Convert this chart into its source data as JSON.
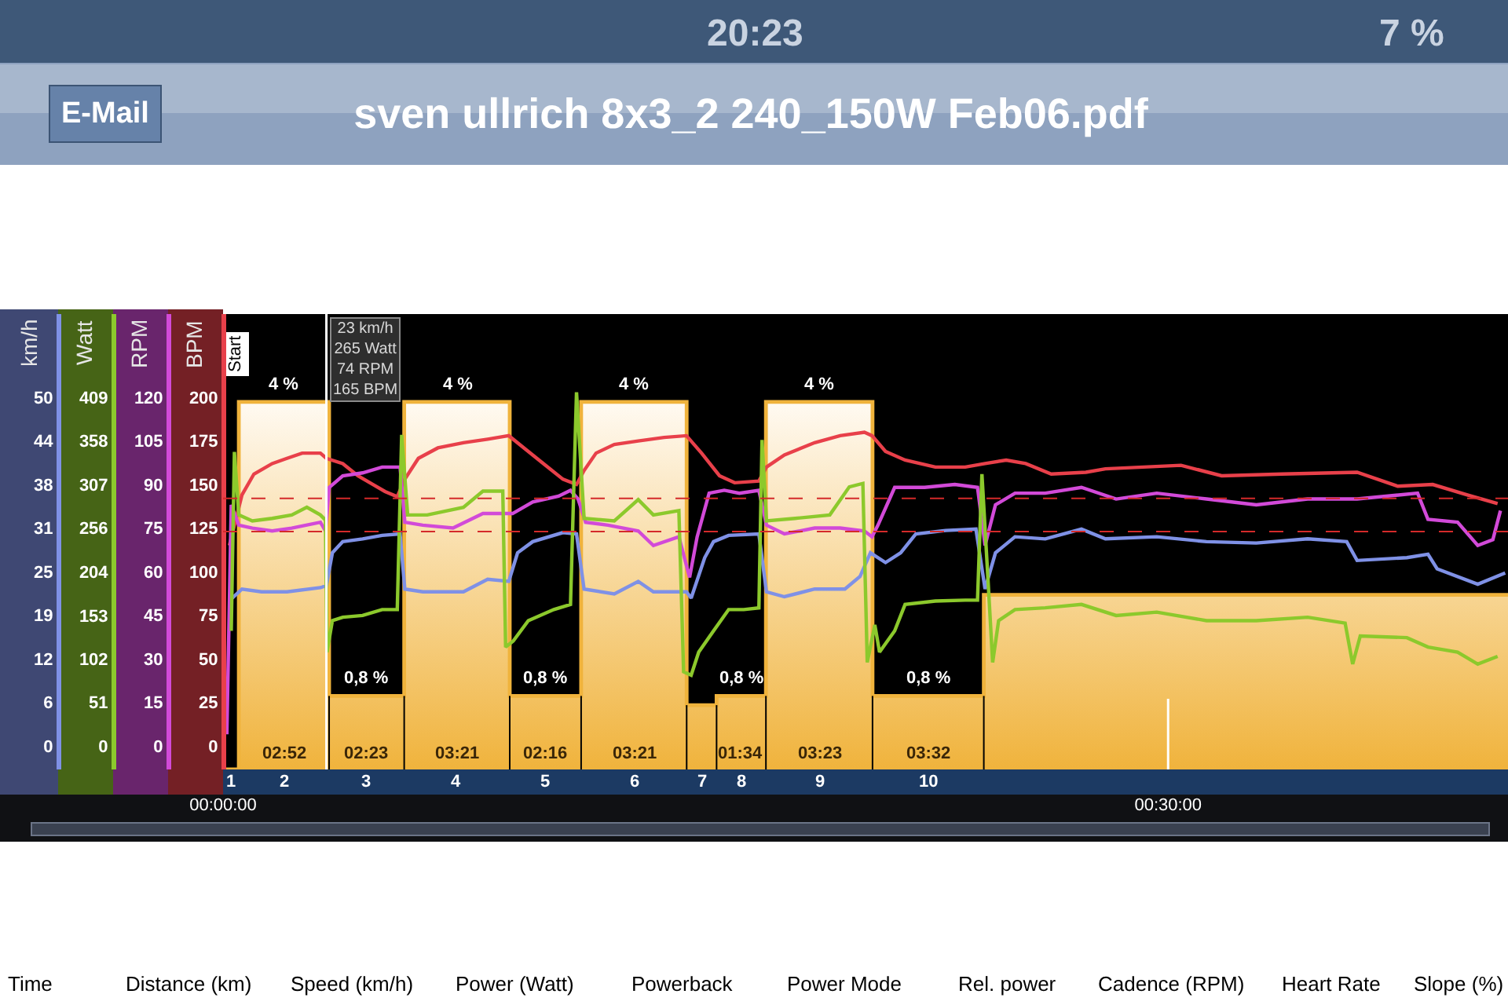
{
  "chart_data": [
    {
      "type": "line",
      "title": "sven ullrich 8x3_2 240_150W Feb06.pdf",
      "xlim": [
        0,
        40.79
      ],
      "xticks": [
        {
          "value": 0,
          "label": "00:00:00"
        },
        {
          "value": 30,
          "label": "00:30:00"
        }
      ],
      "y2label": "km/h",
      "y2lim": [
        -3.38,
        61.95
      ],
      "y2ticks": [
        0,
        {
          "value": 6.25,
          "label": "6"
        },
        {
          "value": 12.5,
          "label": "12"
        },
        {
          "value": 18.75,
          "label": "19"
        },
        25,
        {
          "value": 31.25,
          "label": "31"
        },
        {
          "value": 37.5,
          "label": "38"
        },
        {
          "value": 43.75,
          "label": "44"
        },
        50
      ],
      "series": [
        {
          "type": "area",
          "color": "#f0b33c",
          "x": [
            0,
            0.25,
            0.5,
            0.5,
            1.93,
            3.367,
            3.367,
            4.56,
            5.75,
            5.75,
            7.43,
            9.1,
            9.1,
            10.23,
            11.367,
            11.367,
            13.04,
            14.717,
            14.717,
            15.19,
            15.667,
            15.667,
            16.45,
            17.233,
            17.233,
            18.93,
            20.617,
            20.617,
            22.38,
            24.15,
            24.15,
            32.47,
            40.79
          ],
          "values": [
            0,
            0,
            0,
            4,
            4,
            4,
            0.8,
            0.8,
            0.8,
            4,
            4,
            4,
            0.8,
            0.8,
            0.8,
            4,
            4,
            4,
            0.7,
            0.7,
            0.7,
            0.8,
            0.8,
            0.8,
            4,
            4,
            4,
            0.8,
            0.8,
            0.8,
            1.9,
            1.9,
            1.9
          ],
          "value_labels": [
            null,
            null,
            null,
            null,
            "4 %",
            null,
            null,
            "0,8 %",
            null,
            null,
            "4 %",
            null,
            null,
            "0,8 %",
            null,
            null,
            "4 %",
            null,
            null,
            null,
            null,
            null,
            "0,8 %",
            null,
            null,
            "4 %",
            null,
            null,
            "0,8 %",
            null,
            null,
            null,
            null
          ]
        },
        {
          "color": "#7f91e6",
          "axis": "y2",
          "x": [
            0.22,
            0.6,
            1.22,
            2.03,
            3.09,
            3.28,
            3.47,
            3.8,
            4.43,
            5.05,
            5.62,
            5.77,
            6.34,
            7.63,
            8.4,
            9.07,
            9.35,
            9.83,
            10.79,
            11.22,
            11.46,
            12.42,
            13.18,
            13.66,
            14.71,
            14.86,
            15.29,
            15.57,
            16.05,
            17.01,
            17.25,
            17.82,
            18.78,
            19.74,
            20.22,
            20.55,
            21.03,
            21.51,
            21.99,
            22.94,
            23.9,
            24.19,
            24.52,
            25.14,
            26.1,
            27.25,
            28.01,
            29.64,
            31.22,
            32.8,
            34.43,
            35.67,
            36.0,
            37.58,
            38.25,
            38.54,
            39.83,
            40.7
          ],
          "values": [
            20.9,
            22.5,
            22.1,
            22.1,
            22.7,
            23,
            27.7,
            29.3,
            29.7,
            30.2,
            30.4,
            22.5,
            22.1,
            22.1,
            23.9,
            23.6,
            27.7,
            29.3,
            30.6,
            30.4,
            22.5,
            21.8,
            23.6,
            22.1,
            22.1,
            21.2,
            27,
            29.3,
            30.2,
            30.4,
            22.1,
            21.4,
            22.5,
            22.5,
            24.3,
            27.7,
            26.3,
            27.7,
            30.4,
            30.9,
            31.1,
            22.5,
            27.7,
            30,
            29.7,
            31.1,
            29.7,
            30,
            29.3,
            29.1,
            29.7,
            29.3,
            26.6,
            27,
            27.5,
            25.4,
            23.2,
            24.8
          ]
        }
      ],
      "annotations": [
        "20:23",
        "7 %",
        "E-Mail",
        "Start",
        "Time",
        "Distance (km)",
        "Speed (km/h)",
        "Power (Watt)",
        "Powerback",
        "Power Mode",
        "Rel. power",
        "Cadence (RPM)",
        "Heart Rate",
        "Slope (%)",
        "02:52",
        "02:23",
        "03:21",
        "02:16",
        "03:21",
        "01:34",
        "03:23",
        "03:32",
        "1",
        "2",
        "3",
        "4",
        "5",
        "6",
        "7",
        "8",
        "9",
        "10"
      ]
    },
    {
      "type": "line",
      "xlim": [
        0,
        40.79
      ],
      "tick_labels": "y",
      "ylabel": "BPM",
      "ylim": [
        -13.52,
        247.8
      ],
      "yticks": [
        0,
        25,
        50,
        75,
        100,
        125,
        150,
        175,
        200
      ],
      "y2label": "RPM",
      "y2lim": [
        -8.11,
        148.68
      ],
      "y2ticks": [
        0,
        15,
        30,
        45,
        60,
        75,
        90,
        105,
        120
      ],
      "y3label": "Watt",
      "y3lim": [
        -27.65,
        506.75
      ],
      "y3ticks": [
        0,
        51,
        102,
        153,
        204,
        256,
        307,
        358,
        409
      ],
      "series": [
        {
          "color": "#e8404a",
          "x": [
            0.2,
            0.6,
            0.98,
            1.56,
            2.03,
            2.51,
            3.09,
            3.28,
            3.8,
            4.28,
            4.76,
            5.14,
            5.53,
            5.77,
            6.2,
            6.82,
            7.63,
            8.4,
            9.07,
            9.55,
            10.17,
            10.79,
            11.22,
            11.46,
            11.84,
            12.42,
            13.18,
            14.0,
            14.71,
            15.19,
            15.76,
            16.24,
            17.01,
            17.25,
            17.82,
            18.78,
            19.59,
            20.36,
            20.6,
            21.03,
            21.65,
            22.61,
            23.56,
            24.19,
            24.86,
            25.48,
            26.29,
            27.39,
            28.01,
            30.41,
            31.7,
            33.61,
            36.0,
            37.29,
            38.4,
            39.5,
            40.46
          ],
          "values": [
            115,
            144,
            156,
            162,
            165,
            168,
            168,
            165,
            162,
            155,
            150,
            146,
            143,
            153,
            165,
            171,
            174,
            176,
            178,
            171,
            162,
            153,
            150,
            158,
            168,
            173,
            175,
            177,
            178,
            168,
            155,
            151,
            152,
            160,
            167,
            174,
            178,
            180,
            178,
            169,
            164,
            160,
            160,
            162,
            164,
            162,
            156,
            157,
            159,
            161,
            155,
            156,
            157,
            149,
            150,
            144,
            139
          ]
        },
        {
          "color": "#d24ad8",
          "axis": "y2",
          "x": [
            0.12,
            0.26,
            0.5,
            0.93,
            1.56,
            2.18,
            3.09,
            3.25,
            3.37,
            3.8,
            4.43,
            5.05,
            5.62,
            5.77,
            6.34,
            7.3,
            8.25,
            9.19,
            9.83,
            10.65,
            11.03,
            11.27,
            11.51,
            12.22,
            13.18,
            13.66,
            14.47,
            14.81,
            15.05,
            15.43,
            15.91,
            16.39,
            17.01,
            17.25,
            17.82,
            18.78,
            19.59,
            20.36,
            20.6,
            20.79,
            21.32,
            22.27,
            23.23,
            23.95,
            24.19,
            24.52,
            25.14,
            26.1,
            27.25,
            28.35,
            29.64,
            31.22,
            32.8,
            34.43,
            36.0,
            37.92,
            38.25,
            39.19,
            39.83,
            40.31,
            40.55
          ],
          "values": [
            4,
            83,
            76,
            75,
            74,
            75,
            77,
            74,
            89,
            93,
            94,
            96,
            96,
            77,
            76,
            75,
            80,
            80,
            84,
            86,
            88,
            85,
            77,
            76,
            74,
            69,
            72,
            58,
            72,
            87,
            88,
            87,
            88,
            76,
            73,
            75,
            75,
            74,
            72,
            76,
            89,
            89,
            90,
            89,
            69,
            83,
            87,
            87,
            89,
            85,
            87,
            85,
            83,
            85,
            85,
            87,
            78,
            77,
            69,
            71,
            81
          ]
        },
        {
          "color": "#8cc92c",
          "axis": "y3",
          "x": [
            0.26,
            0.36,
            0.5,
            0.93,
            1.56,
            2.18,
            2.66,
            3.09,
            3.25,
            3.3,
            3.47,
            3.8,
            4.43,
            5.05,
            5.53,
            5.67,
            5.86,
            6.48,
            7.63,
            8.25,
            8.88,
            8.97,
            9.21,
            9.69,
            10.5,
            11.03,
            11.22,
            11.46,
            12.42,
            13.18,
            13.66,
            14.47,
            14.62,
            14.86,
            15.1,
            15.57,
            16.05,
            16.53,
            17.01,
            17.11,
            17.25,
            18.16,
            19.26,
            19.88,
            20.31,
            20.45,
            20.69,
            20.84,
            21.32,
            21.65,
            22.61,
            23.56,
            23.95,
            24.09,
            24.28,
            24.43,
            24.62,
            25.14,
            26.1,
            27.25,
            28.35,
            29.64,
            31.22,
            32.8,
            34.43,
            35.62,
            35.86,
            36.1,
            37.58,
            38.25,
            39.19,
            39.83,
            40.46
          ],
          "values": [
            135,
            345,
            271,
            264,
            267,
            271,
            280,
            271,
            265,
            110,
            147,
            151,
            153,
            160,
            160,
            365,
            271,
            271,
            280,
            299,
            299,
            116,
            123,
            147,
            160,
            166,
            415,
            267,
            264,
            289,
            271,
            276,
            87,
            83,
            110,
            135,
            160,
            160,
            162,
            359,
            264,
            267,
            271,
            304,
            308,
            98,
            142,
            110,
            135,
            166,
            170,
            171,
            171,
            319,
            197,
            98,
            147,
            160,
            162,
            166,
            153,
            157,
            147,
            147,
            151,
            144,
            96,
            129,
            127,
            116,
            110,
            96,
            105
          ]
        }
      ],
      "ref_lines": [
        {
          "axis": "y",
          "value": 142,
          "color": "#d42a2a",
          "line_style": "dashed"
        },
        {
          "axis": "y",
          "value": 123,
          "color": "#d42a2a",
          "line_style": "dashed"
        },
        {
          "axis": "x",
          "value": 3.28,
          "color": "#ffffff",
          "label": "23 km/h\n265 Watt\n74 RPM\n165 BPM"
        }
      ]
    }
  ]
}
